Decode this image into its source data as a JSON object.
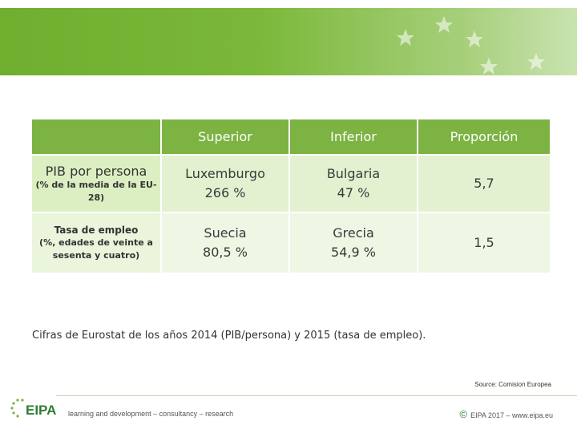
{
  "table": {
    "headers": [
      "",
      "Superior",
      "Inferior",
      "Proporción"
    ],
    "rows": [
      {
        "label_main": "PIB por persona",
        "label_sub": "(% de la media de la EU-28)",
        "superior": [
          "Luxemburgo",
          "266 %"
        ],
        "inferior": [
          "Bulgaria",
          "47 %"
        ],
        "ratio": "5,7"
      },
      {
        "label_main": "Tasa de empleo",
        "label_sub": "(%, edades de veinte a sesenta y cuatro)",
        "superior": [
          "Suecia",
          "80,5 %"
        ],
        "inferior": [
          "Grecia",
          "54,9 %"
        ],
        "ratio": "1,5"
      }
    ]
  },
  "note": "Cifras de Eurostat de los años 2014 (PIB/persona) y 2015 (tasa de empleo).",
  "source": "Source: Comision Europea",
  "footer": {
    "logo": "EIPA",
    "tagline": "learning and development – consultancy – research",
    "copyright_symbol": "©",
    "copyright": "EIPA 2017 – www.eipa.eu"
  },
  "colors": {
    "header_green": "#7cb342",
    "banner_green": "#6fae2e",
    "cell_light": "#e3f1d0"
  }
}
